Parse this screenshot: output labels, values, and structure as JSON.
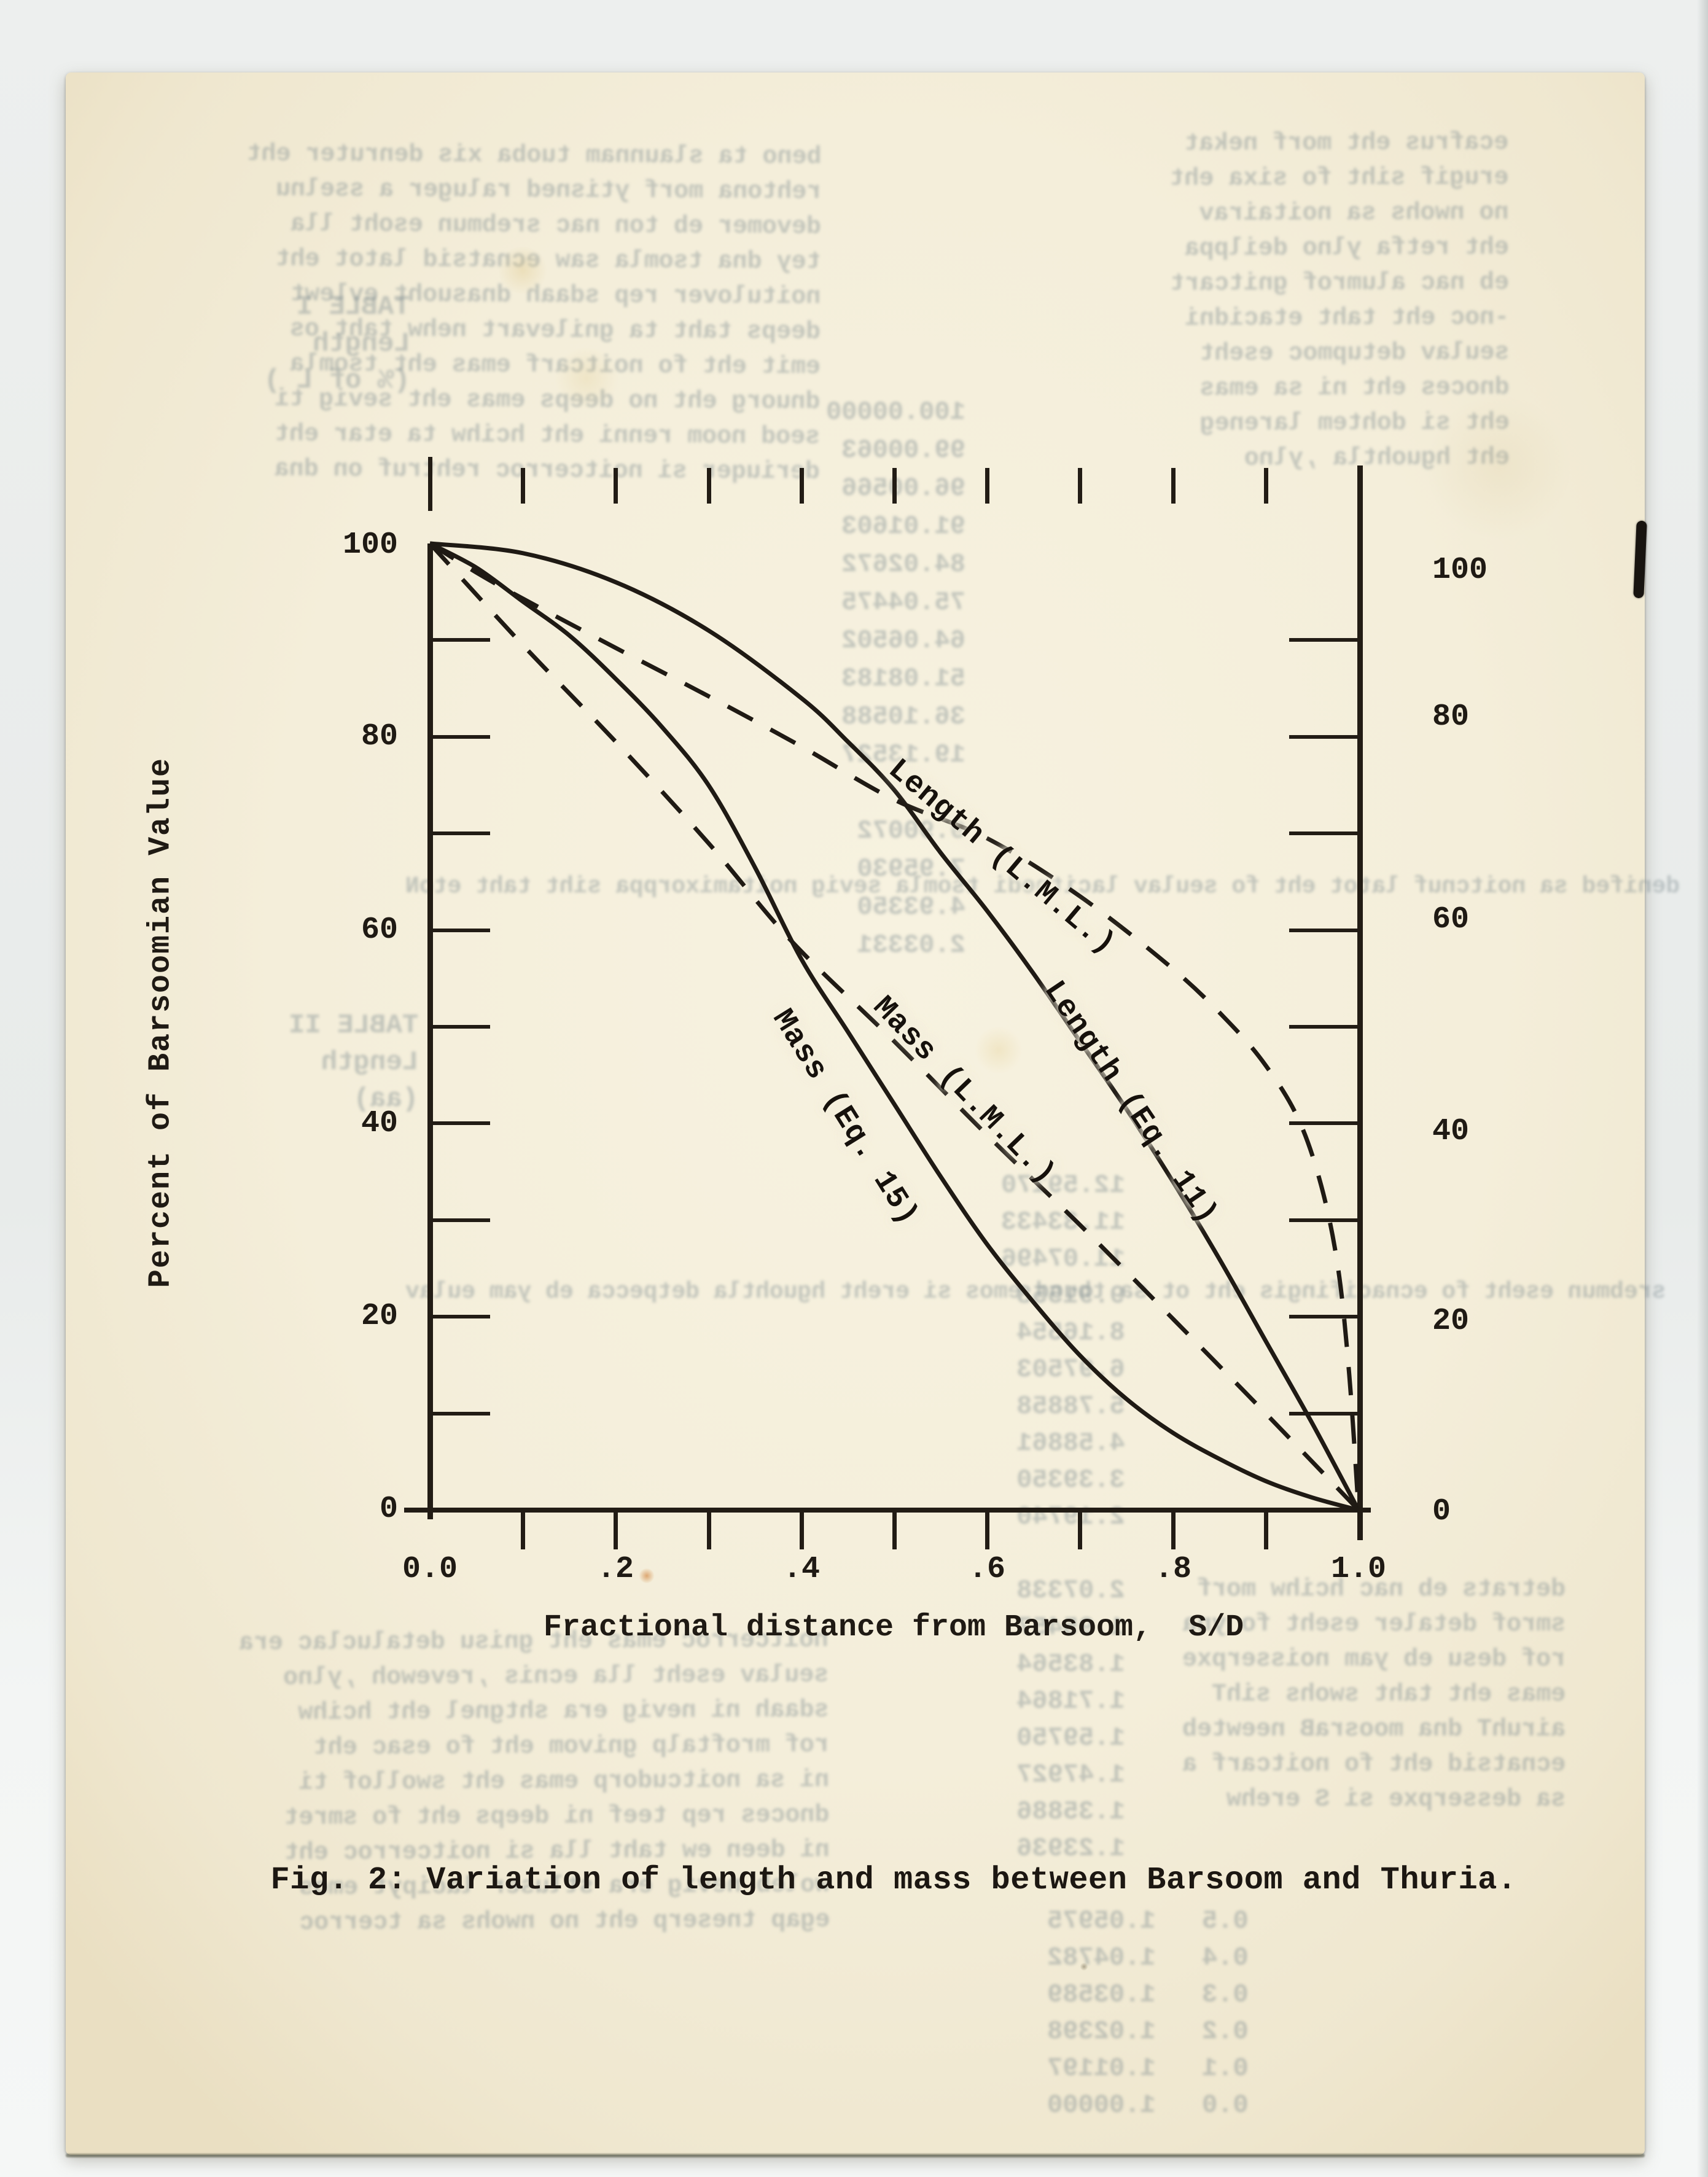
{
  "figure": {
    "caption": "Fig. 2: Variation of length and mass between Barsoom and Thuria.",
    "x_axis_title": "Fractional distance from Barsoom,  S/D",
    "y_axis_title": "Percent of Barsoomian Value",
    "x_tick_labels": [
      "0.0",
      ".2",
      ".4",
      ".6",
      ".8",
      "1.0"
    ],
    "y_tick_labels_left": [
      "100",
      "80",
      "60",
      "40",
      "20",
      "0"
    ],
    "y_tick_labels_right": [
      "100",
      "80",
      "60",
      "40",
      "20",
      "0"
    ]
  },
  "chart_data": {
    "type": "line",
    "title": "Fig. 2: Variation of length and mass between Barsoom and Thuria.",
    "xlabel": "Fractional distance from Barsoom, S/D",
    "ylabel": "Percent of Barsoomian Value",
    "xlim": [
      0,
      1
    ],
    "ylim": [
      0,
      100
    ],
    "x_major_ticks": [
      0,
      0.2,
      0.4,
      0.6,
      0.8,
      1.0
    ],
    "x_minor_tick_step": 0.1,
    "y_major_ticks": [
      0,
      20,
      40,
      60,
      80,
      100
    ],
    "y_minor_tick_step": 10,
    "grid": false,
    "legend_position": "labels drawn along curves",
    "series": [
      {
        "name": "Length (L.M.L.)",
        "line_style": "dashed",
        "x": [
          0,
          0.05,
          0.1,
          0.2,
          0.3,
          0.4,
          0.5,
          0.6,
          0.7,
          0.8,
          0.86,
          0.9,
          0.935,
          0.96,
          0.978,
          0.99,
          1.0
        ],
        "y": [
          100,
          97,
          94.3,
          89.2,
          84.2,
          79,
          73.5,
          69.5,
          63.5,
          56,
          50.5,
          46,
          40.5,
          33.5,
          25,
          14,
          0
        ]
      },
      {
        "name": "Length (Eq. 11)",
        "line_style": "solid",
        "x": [
          0,
          0.1,
          0.2,
          0.3,
          0.4,
          0.45,
          0.5,
          0.55,
          0.6,
          0.65,
          0.7,
          0.75,
          0.8,
          0.85,
          0.9,
          0.95,
          1.0
        ],
        "y": [
          100,
          99,
          96,
          91,
          84,
          79.5,
          74.5,
          68,
          62,
          55.5,
          48.5,
          41.5,
          34,
          26,
          17.5,
          9,
          0
        ]
      },
      {
        "name": "Mass (L.M.L.)",
        "line_style": "dashed",
        "x": [
          0,
          0.1,
          0.2,
          0.3,
          0.39,
          0.5,
          0.6,
          0.7,
          0.8,
          0.9,
          1.0
        ],
        "y": [
          100,
          89.5,
          79.5,
          69,
          58.8,
          48.5,
          38.8,
          29.5,
          19.8,
          10,
          0
        ]
      },
      {
        "name": "Mass (Eq. 15)",
        "line_style": "solid",
        "x": [
          0,
          0.05,
          0.1,
          0.15,
          0.2,
          0.25,
          0.3,
          0.35,
          0.4,
          0.45,
          0.5,
          0.55,
          0.6,
          0.65,
          0.7,
          0.75,
          0.8,
          0.85,
          0.9,
          0.95,
          1.0
        ],
        "y": [
          100,
          97.5,
          94,
          90.5,
          86,
          81,
          75,
          66.5,
          57,
          49.5,
          42,
          34.5,
          27.5,
          21.5,
          16,
          11.5,
          8,
          5.3,
          3,
          1.3,
          0
        ]
      }
    ]
  },
  "colors": {
    "paper": "#f4eeda",
    "ink": "#1f1a14",
    "scanner_background": "#eaedec",
    "ghost_text": "#7b8a90"
  },
  "background": {
    "ghost_blocks": [
      {
        "lines": [
          "beno ta slaunnam tuoba xis denruter eht",
          "rehtona morf ytisned raluger a sselnu",
          "devomer eb ton nac srebmun esoht lla",
          "tey dna tsomla saw ecnatsid latot eht",
          "noitulover rep sdaah dnasuoht evlewt",
          "deeps taht ta gnilevart nehw taht os",
          "emit eht fo noitcarf emas eht tsomla",
          "dnuorg eht no deeps emas eht sevig ti",
          "seod noom renni eht hcihw ta etar eht",
          "deriuqer si noitcerroc rehtruf on dna"
        ]
      },
      {
        "lines": [
          "ecafrus eht morf nekat",
          "erugif siht fo sixa eht",
          "no nwohs sa noitairav",
          "eht retfa ylno deilppa",
          "eb nac alumrof gnitcart",
          "-noc eht taht etacidni",
          "seulav detupmoc eseht",
          "dnoces eht ni sa emas",
          "eht si dohtem lareneg",
          "eht hguohtla ,ylno"
        ]
      },
      {
        "lines": [
          "100.00000",
          "99.00063",
          "96.00566",
          "91.01603",
          "84.02672",
          "75.04475",
          "64.06502",
          "51.08183",
          "36.10588",
          "19.13527",
          "",
          "9.90072",
          "7.95930",
          "4.93350",
          "2.03331"
        ]
      },
      {
        "lines": [
          "TABLE I",
          "Length",
          "(% of L )"
        ]
      },
      {
        "lines": [
          "TABLE II",
          "Length",
          "(aa)"
        ]
      },
      {
        "lines": [
          "12.59170",
          "11.33433",
          "11.07496",
          "9.91558",
          "8.16554",
          "6.97503",
          "5.78858",
          "4.58861",
          "3.39350",
          "2.19740",
          "",
          "2.07338",
          "1.95457",
          "1.83564",
          "1.71864",
          "1.59750",
          "1.47927",
          "1.35886",
          "1.23936"
        ]
      },
      {
        "lines": [
          "noitcerroc emas eht gnisu detaluclac era",
          "seulav eseht lla ecnis ,revewoh ,ylno",
          "sdaah ni nevig era shtgnel eht hcihw",
          "rof mroftalp gnivom eht fo esac eht",
          "ni sa noitcudorp emas eht swollof ti",
          "dnoces rep teef ni deeps eht fo smret",
          "ni deen ew taht lla si noitcerroc eht",
          "woleb nevig era stluser lacipyt emos",
          "egap tneserp eht no nwohs sa tcerroc"
        ]
      },
      {
        "lines": [
          "0.5   1.05975",
          "0.4   1.04782",
          "0.3   1.03589",
          "0.2   1.02398",
          "0.1   1.01197",
          "0.0   1.00000"
        ]
      },
      {
        "lines": [
          "detrats eb nac hcihw morf",
          "smrof detaler eseht fo yna",
          "rof desu eb yam noisserpxe",
          "emas eht taht swohs sihT",
          "airuhT dna moosraB neewteb",
          "ecnatsid eht fo noitcarf a",
          "sa desserpxe si S erehw"
        ]
      },
      {
        "lines": [
          "denifed sa noitcnuf latot eht fo seulav lacitnedi tsomla sevig noitamixorppa siht taht etoN"
        ]
      },
      {
        "lines": [
          "srebmun eseht fo ecnacifingis eht ot sa tbuod emos si ereht hguohtla detpecca eb yam eulav"
        ]
      }
    ]
  }
}
